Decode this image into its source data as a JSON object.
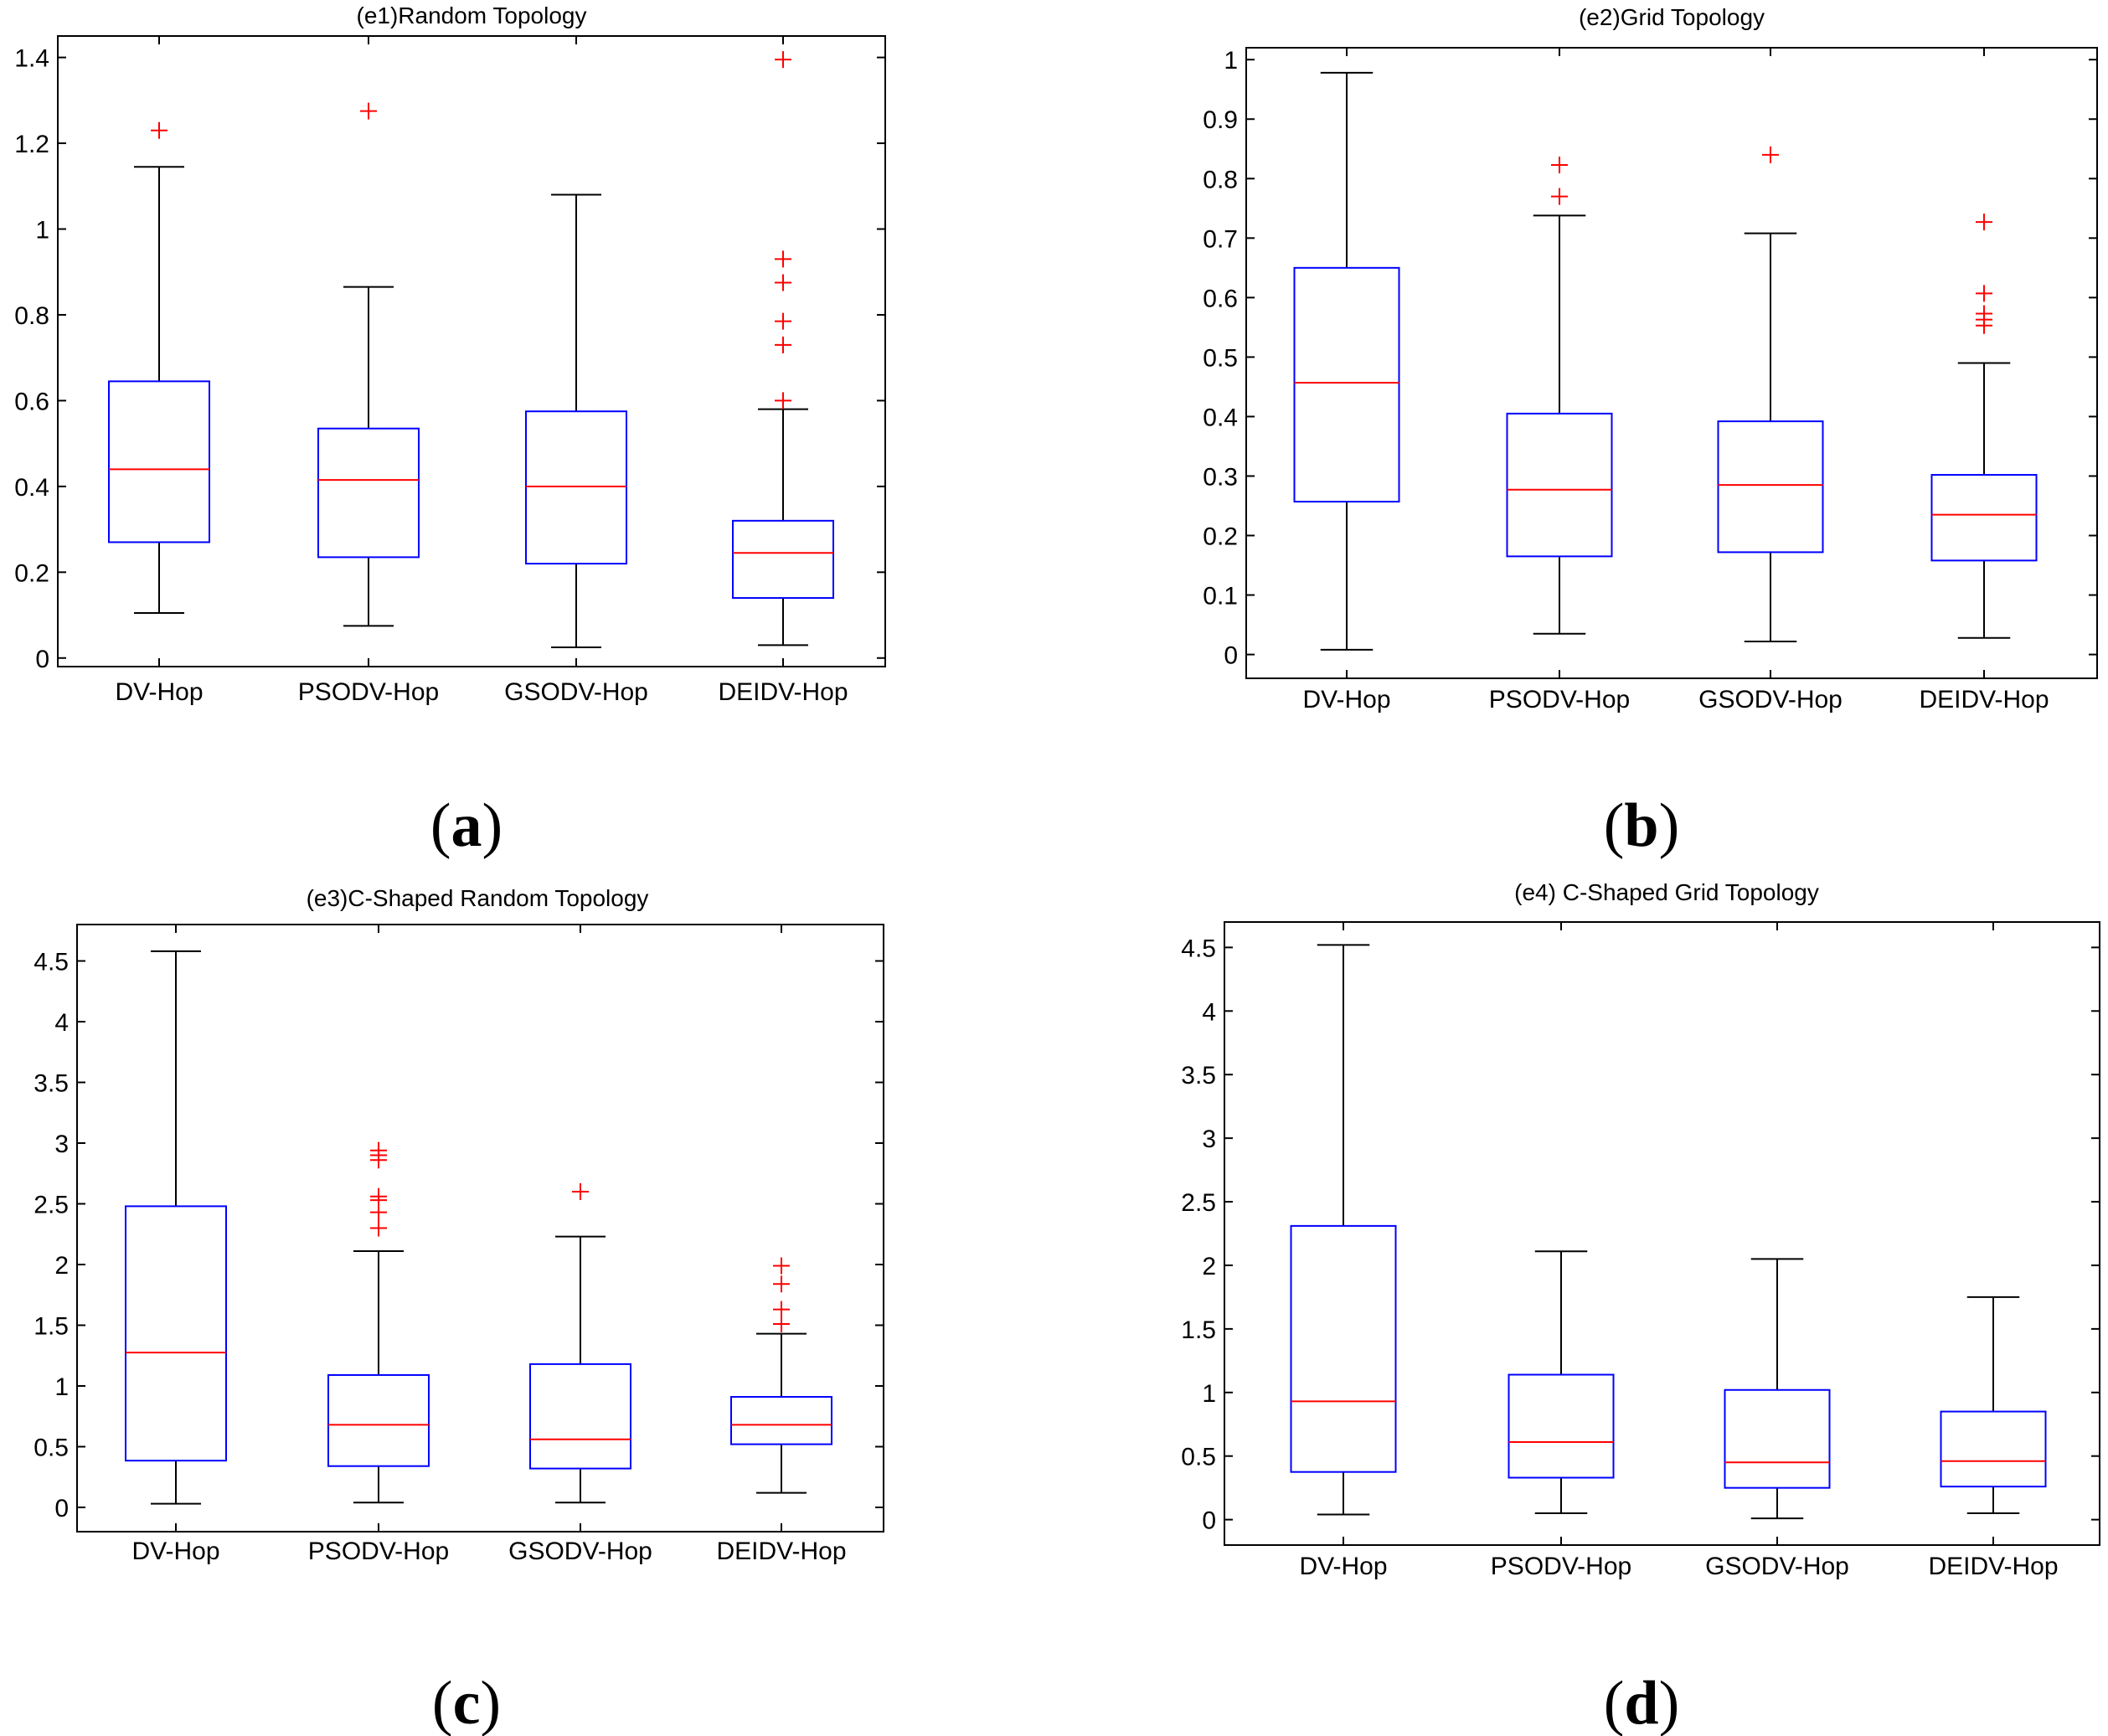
{
  "chart_data": [
    {
      "type": "boxplot",
      "panel": "a",
      "title": "(e1)Random Topology",
      "categories": [
        "DV-Hop",
        "PSODV-Hop",
        "GSODV-Hop",
        "DEIDV-Hop"
      ],
      "ylim": [
        -0.02,
        1.45
      ],
      "yticks": [
        0,
        0.2,
        0.4,
        0.6,
        0.8,
        1,
        1.2,
        1.4
      ],
      "ytick_labels": [
        "0",
        "0.2",
        "0.4",
        "0.6",
        "0.8",
        "1",
        "1.2",
        "1.4"
      ],
      "boxes": [
        {
          "name": "DV-Hop",
          "whisker_low": 0.105,
          "q1": 0.27,
          "median": 0.44,
          "q3": 0.645,
          "whisker_high": 1.145,
          "outliers": [
            1.23
          ]
        },
        {
          "name": "PSODV-Hop",
          "whisker_low": 0.075,
          "q1": 0.235,
          "median": 0.415,
          "q3": 0.535,
          "whisker_high": 0.865,
          "outliers": [
            1.275
          ]
        },
        {
          "name": "GSODV-Hop",
          "whisker_low": 0.025,
          "q1": 0.22,
          "median": 0.4,
          "q3": 0.575,
          "whisker_high": 1.08,
          "outliers": []
        },
        {
          "name": "DEIDV-Hop",
          "whisker_low": 0.03,
          "q1": 0.14,
          "median": 0.245,
          "q3": 0.32,
          "whisker_high": 0.58,
          "outliers": [
            0.6,
            0.73,
            0.785,
            0.875,
            0.93,
            1.395
          ]
        }
      ]
    },
    {
      "type": "boxplot",
      "panel": "b",
      "title": "(e2)Grid Topology",
      "categories": [
        "DV-Hop",
        "PSODV-Hop",
        "GSODV-Hop",
        "DEIDV-Hop"
      ],
      "ylim": [
        -0.04,
        1.02
      ],
      "yticks": [
        0,
        0.1,
        0.2,
        0.3,
        0.4,
        0.5,
        0.6,
        0.7,
        0.8,
        0.9,
        1
      ],
      "ytick_labels": [
        "0",
        "0.1",
        "0.2",
        "0.3",
        "0.4",
        "0.5",
        "0.6",
        "0.7",
        "0.8",
        "0.9",
        "1"
      ],
      "boxes": [
        {
          "name": "DV-Hop",
          "whisker_low": 0.008,
          "q1": 0.257,
          "median": 0.457,
          "q3": 0.65,
          "whisker_high": 0.978,
          "outliers": []
        },
        {
          "name": "PSODV-Hop",
          "whisker_low": 0.035,
          "q1": 0.165,
          "median": 0.277,
          "q3": 0.405,
          "whisker_high": 0.738,
          "outliers": [
            0.77,
            0.823
          ]
        },
        {
          "name": "GSODV-Hop",
          "whisker_low": 0.022,
          "q1": 0.172,
          "median": 0.285,
          "q3": 0.392,
          "whisker_high": 0.708,
          "outliers": [
            0.84
          ]
        },
        {
          "name": "DEIDV-Hop",
          "whisker_low": 0.028,
          "q1": 0.158,
          "median": 0.235,
          "q3": 0.302,
          "whisker_high": 0.49,
          "outliers": [
            0.553,
            0.563,
            0.573,
            0.607,
            0.727
          ]
        }
      ]
    },
    {
      "type": "boxplot",
      "panel": "c",
      "title": "(e3)C-Shaped Random Topology",
      "categories": [
        "DV-Hop",
        "PSODV-Hop",
        "GSODV-Hop",
        "DEIDV-Hop"
      ],
      "ylim": [
        -0.2,
        4.8
      ],
      "yticks": [
        0,
        0.5,
        1,
        1.5,
        2,
        2.5,
        3,
        3.5,
        4,
        4.5
      ],
      "ytick_labels": [
        "0",
        "0.5",
        "1",
        "1.5",
        "2",
        "2.5",
        "3",
        "3.5",
        "4",
        "4.5"
      ],
      "boxes": [
        {
          "name": "DV-Hop",
          "whisker_low": 0.03,
          "q1": 0.385,
          "median": 1.275,
          "q3": 2.48,
          "whisker_high": 4.58,
          "outliers": []
        },
        {
          "name": "PSODV-Hop",
          "whisker_low": 0.04,
          "q1": 0.34,
          "median": 0.68,
          "q3": 1.09,
          "whisker_high": 2.11,
          "outliers": [
            2.3,
            2.43,
            2.53,
            2.56,
            2.86,
            2.9,
            2.94
          ]
        },
        {
          "name": "GSODV-Hop",
          "whisker_low": 0.04,
          "q1": 0.32,
          "median": 0.56,
          "q3": 1.18,
          "whisker_high": 2.23,
          "outliers": [
            2.6
          ]
        },
        {
          "name": "DEIDV-Hop",
          "whisker_low": 0.12,
          "q1": 0.52,
          "median": 0.68,
          "q3": 0.91,
          "whisker_high": 1.43,
          "outliers": [
            1.51,
            1.63,
            1.84,
            1.99
          ]
        }
      ]
    },
    {
      "type": "boxplot",
      "panel": "d",
      "title": "(e4) C-Shaped Grid Topology",
      "categories": [
        "DV-Hop",
        "PSODV-Hop",
        "GSODV-Hop",
        "DEIDV-Hop"
      ],
      "ylim": [
        -0.2,
        4.7
      ],
      "yticks": [
        0,
        0.5,
        1,
        1.5,
        2,
        2.5,
        3,
        3.5,
        4,
        4.5
      ],
      "ytick_labels": [
        "0",
        "0.5",
        "1",
        "1.5",
        "2",
        "2.5",
        "3",
        "3.5",
        "4",
        "4.5"
      ],
      "boxes": [
        {
          "name": "DV-Hop",
          "whisker_low": 0.04,
          "q1": 0.375,
          "median": 0.93,
          "q3": 2.31,
          "whisker_high": 4.52,
          "outliers": []
        },
        {
          "name": "PSODV-Hop",
          "whisker_low": 0.05,
          "q1": 0.33,
          "median": 0.61,
          "q3": 1.14,
          "whisker_high": 2.11,
          "outliers": []
        },
        {
          "name": "GSODV-Hop",
          "whisker_low": 0.01,
          "q1": 0.25,
          "median": 0.45,
          "q3": 1.02,
          "whisker_high": 2.05,
          "outliers": []
        },
        {
          "name": "DEIDV-Hop",
          "whisker_low": 0.05,
          "q1": 0.26,
          "median": 0.46,
          "q3": 0.85,
          "whisker_high": 1.75,
          "outliers": []
        }
      ]
    }
  ],
  "panel_labels": [
    "a",
    "b",
    "c",
    "d"
  ],
  "colors": {
    "box": "#0000ff",
    "median": "#ff0000",
    "whisker": "#000000",
    "outlier": "#ff0000",
    "axis": "#000000"
  }
}
